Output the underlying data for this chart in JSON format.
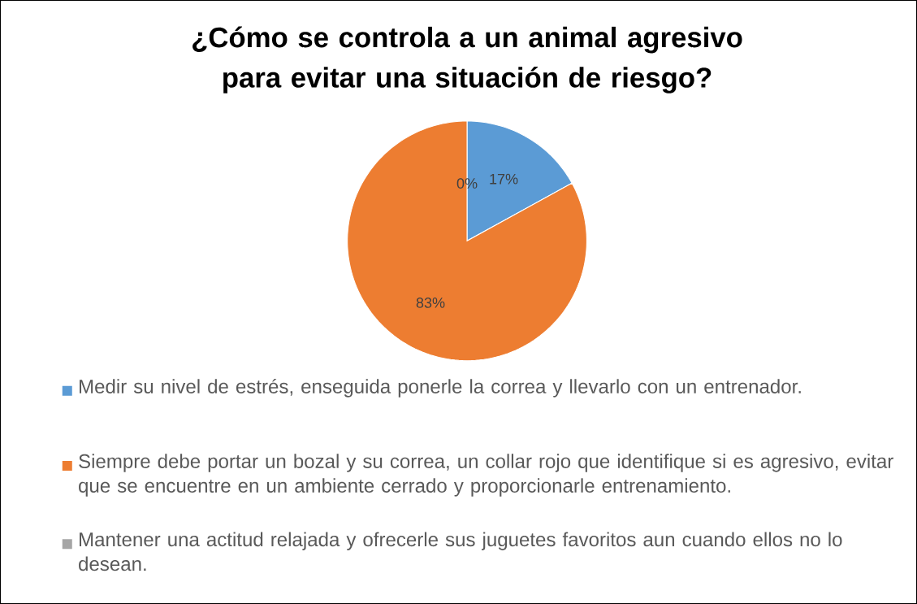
{
  "chart_data": {
    "type": "pie",
    "title": "¿Cómo se controla a un animal agresivo para evitar una situación de riesgo?",
    "categories": [
      "Medir su nivel de estrés, enseguida ponerle la correa y llevarlo con un entrenador.",
      "Siempre debe portar un bozal y su correa, un collar rojo que identifique si es agresivo, evitar que se encuentre en un ambiente cerrado y proporcionarle entrenamiento.",
      "Mantener una actitud relajada y ofrecerle sus juguetes favoritos aun cuando ellos no lo desean."
    ],
    "values": [
      17,
      83,
      0
    ],
    "colors": [
      "#5b9bd5",
      "#ed7d31",
      "#a5a5a5"
    ],
    "value_labels": [
      "17%",
      "83%",
      "0%"
    ],
    "legend": "bottom"
  }
}
